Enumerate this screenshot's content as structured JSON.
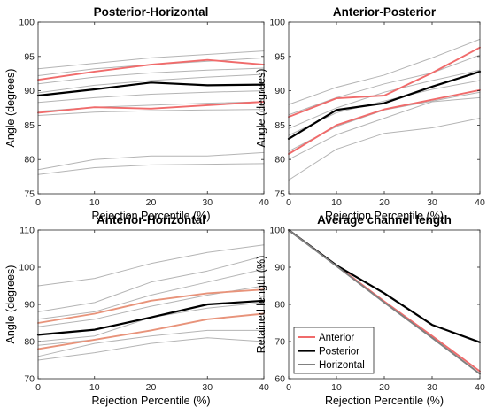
{
  "chart_data": [
    {
      "type": "line",
      "title": "Posterior-Horizontal",
      "xlabel": "Rejection Percentile (%)",
      "ylabel": "Angle (degrees)",
      "xlim": [
        0,
        40
      ],
      "ylim": [
        75,
        100
      ],
      "xticks": [
        0,
        10,
        20,
        30,
        40
      ],
      "yticks": [
        75,
        80,
        85,
        90,
        95,
        100
      ],
      "grid": false,
      "series": [
        {
          "role": "individual",
          "color": "#b4b4b4",
          "x": [
            0,
            10,
            20,
            30,
            40
          ],
          "y": [
            93.2,
            94.0,
            94.8,
            95.3,
            95.8
          ]
        },
        {
          "role": "individual",
          "color": "#b4b4b4",
          "x": [
            0,
            10,
            20,
            30,
            40
          ],
          "y": [
            92.2,
            93.2,
            93.8,
            94.3,
            94.8
          ]
        },
        {
          "role": "individual",
          "color": "#b4b4b4",
          "x": [
            0,
            10,
            20,
            30,
            40
          ],
          "y": [
            91.0,
            92.0,
            92.6,
            93.0,
            93.3
          ]
        },
        {
          "role": "individual",
          "color": "#b4b4b4",
          "x": [
            0,
            10,
            20,
            30,
            40
          ],
          "y": [
            89.7,
            90.8,
            91.5,
            92.0,
            92.4
          ]
        },
        {
          "role": "individual",
          "color": "#b4b4b4",
          "x": [
            0,
            10,
            20,
            30,
            40
          ],
          "y": [
            88.3,
            89.0,
            89.5,
            89.8,
            90.0
          ]
        },
        {
          "role": "individual",
          "color": "#b4b4b4",
          "x": [
            0,
            10,
            20,
            30,
            40
          ],
          "y": [
            87.0,
            87.6,
            87.9,
            88.2,
            88.4
          ]
        },
        {
          "role": "individual",
          "color": "#b4b4b4",
          "x": [
            0,
            10,
            20,
            30,
            40
          ],
          "y": [
            86.4,
            86.9,
            87.1,
            87.2,
            87.3
          ]
        },
        {
          "role": "individual",
          "color": "#b4b4b4",
          "x": [
            0,
            10,
            20,
            30,
            40
          ],
          "y": [
            78.5,
            80.0,
            80.5,
            80.5,
            81.0
          ]
        },
        {
          "role": "individual",
          "color": "#b4b4b4",
          "x": [
            0,
            10,
            20,
            30,
            40
          ],
          "y": [
            77.8,
            78.8,
            79.2,
            79.3,
            79.4
          ]
        },
        {
          "role": "anterior",
          "color": "#f06b6b",
          "x": [
            0,
            10,
            20,
            30,
            40
          ],
          "y": [
            91.6,
            92.8,
            93.8,
            94.5,
            93.8
          ]
        },
        {
          "role": "posterior",
          "color": "#000000",
          "x": [
            0,
            10,
            20,
            30,
            40
          ],
          "y": [
            89.3,
            90.2,
            91.2,
            90.8,
            90.9
          ]
        },
        {
          "role": "anterior",
          "color": "#f06b6b",
          "x": [
            0,
            10,
            20,
            30,
            40
          ],
          "y": [
            86.8,
            87.6,
            87.4,
            87.9,
            88.4
          ]
        }
      ]
    },
    {
      "type": "line",
      "title": "Anterior-Posterior",
      "xlabel": "Rejection Percentile (%)",
      "ylabel": "Angle (degrees)",
      "xlim": [
        0,
        40
      ],
      "ylim": [
        75,
        100
      ],
      "xticks": [
        0,
        10,
        20,
        30,
        40
      ],
      "yticks": [
        75,
        80,
        85,
        90,
        95,
        100
      ],
      "grid": false,
      "series": [
        {
          "role": "individual",
          "color": "#b4b4b4",
          "x": [
            0,
            10,
            20,
            30,
            40
          ],
          "y": [
            88.0,
            90.5,
            92.3,
            94.8,
            97.5
          ]
        },
        {
          "role": "individual",
          "color": "#b4b4b4",
          "x": [
            0,
            10,
            20,
            30,
            40
          ],
          "y": [
            86.5,
            89.0,
            91.0,
            92.6,
            95.2
          ]
        },
        {
          "role": "individual",
          "color": "#b4b4b4",
          "x": [
            0,
            10,
            20,
            30,
            40
          ],
          "y": [
            84.5,
            87.5,
            89.8,
            91.5,
            93.0
          ]
        },
        {
          "role": "individual",
          "color": "#b4b4b4",
          "x": [
            0,
            10,
            20,
            30,
            40
          ],
          "y": [
            83.5,
            86.8,
            88.5,
            90.2,
            91.5
          ]
        },
        {
          "role": "individual",
          "color": "#b4b4b4",
          "x": [
            0,
            10,
            20,
            30,
            40
          ],
          "y": [
            81.2,
            84.8,
            87.2,
            88.5,
            89.8
          ]
        },
        {
          "role": "individual",
          "color": "#b4b4b4",
          "x": [
            0,
            10,
            20,
            30,
            40
          ],
          "y": [
            80.0,
            83.6,
            86.0,
            88.4,
            89.0
          ]
        },
        {
          "role": "individual",
          "color": "#b4b4b4",
          "x": [
            0,
            10,
            20,
            30,
            40
          ],
          "y": [
            77.0,
            81.5,
            83.8,
            84.6,
            86.0
          ]
        },
        {
          "role": "anterior",
          "color": "#f06b6b",
          "x": [
            0,
            10,
            20,
            30,
            40
          ],
          "y": [
            86.2,
            88.9,
            89.3,
            92.6,
            96.3
          ]
        },
        {
          "role": "posterior",
          "color": "#000000",
          "x": [
            0,
            10,
            20,
            30,
            40
          ],
          "y": [
            83.0,
            87.2,
            88.2,
            90.6,
            92.8
          ]
        },
        {
          "role": "anterior",
          "color": "#f06b6b",
          "x": [
            0,
            10,
            20,
            30,
            40
          ],
          "y": [
            80.8,
            85.0,
            87.3,
            88.7,
            90.1
          ]
        }
      ]
    },
    {
      "type": "line",
      "title": "Anterior-Horizontal",
      "xlabel": "Rejection Percentile (%)",
      "ylabel": "Angle (degrees)",
      "xlim": [
        0,
        40
      ],
      "ylim": [
        70,
        110
      ],
      "xticks": [
        0,
        10,
        20,
        30,
        40
      ],
      "yticks": [
        70,
        80,
        90,
        100,
        110
      ],
      "grid": false,
      "series": [
        {
          "role": "individual",
          "color": "#b4b4b4",
          "x": [
            0,
            10,
            20,
            30,
            40
          ],
          "y": [
            95.0,
            97.0,
            101.0,
            104.0,
            106.0
          ]
        },
        {
          "role": "individual",
          "color": "#b4b4b4",
          "x": [
            0,
            10,
            20,
            30,
            40
          ],
          "y": [
            88.0,
            90.5,
            96.0,
            99.0,
            103.0
          ]
        },
        {
          "role": "individual",
          "color": "#b4b4b4",
          "x": [
            0,
            10,
            20,
            30,
            40
          ],
          "y": [
            86.0,
            88.0,
            92.5,
            96.0,
            99.5
          ]
        },
        {
          "role": "individual",
          "color": "#b4b4b4",
          "x": [
            0,
            10,
            20,
            30,
            40
          ],
          "y": [
            84.0,
            86.0,
            89.5,
            92.5,
            95.0
          ]
        },
        {
          "role": "individual",
          "color": "#b4b4b4",
          "x": [
            0,
            10,
            20,
            30,
            40
          ],
          "y": [
            80.0,
            81.5,
            86.5,
            89.0,
            90.5
          ]
        },
        {
          "role": "individual",
          "color": "#b4b4b4",
          "x": [
            0,
            10,
            20,
            30,
            40
          ],
          "y": [
            79.0,
            80.5,
            83.0,
            86.0,
            87.5
          ]
        },
        {
          "role": "individual",
          "color": "#b4b4b4",
          "x": [
            0,
            10,
            20,
            30,
            40
          ],
          "y": [
            76.0,
            79.5,
            81.5,
            83.0,
            83.0
          ]
        },
        {
          "role": "individual",
          "color": "#b4b4b4",
          "x": [
            0,
            10,
            20,
            30,
            40
          ],
          "y": [
            75.0,
            77.0,
            79.5,
            81.0,
            80.0
          ]
        },
        {
          "role": "anterior",
          "color": "#e8937a",
          "x": [
            0,
            10,
            20,
            30,
            40
          ],
          "y": [
            85.0,
            87.5,
            91.0,
            93.0,
            94.0
          ]
        },
        {
          "role": "posterior",
          "color": "#000000",
          "x": [
            0,
            10,
            20,
            30,
            40
          ],
          "y": [
            81.8,
            83.2,
            86.5,
            90.0,
            91.0
          ]
        },
        {
          "role": "anterior",
          "color": "#e8937a",
          "x": [
            0,
            10,
            20,
            30,
            40
          ],
          "y": [
            78.0,
            80.5,
            83.0,
            86.0,
            87.5
          ]
        }
      ]
    },
    {
      "type": "line",
      "title": "Average channel length",
      "xlabel": "Rejection Percentile (%)",
      "ylabel": "Retained length (%)",
      "xlim": [
        0,
        40
      ],
      "ylim": [
        60,
        100
      ],
      "xticks": [
        0,
        10,
        20,
        30,
        40
      ],
      "yticks": [
        60,
        70,
        80,
        90,
        100
      ],
      "grid": false,
      "legend": {
        "placement": "bottom-left",
        "entries": [
          "Anterior",
          "Posterior",
          "Horizontal"
        ]
      },
      "series": [
        {
          "name": "Anterior",
          "color": "#f06b6b",
          "x": [
            0,
            10,
            20,
            30,
            40
          ],
          "y": [
            100.0,
            90.5,
            80.8,
            71.5,
            62.0
          ]
        },
        {
          "name": "Posterior",
          "color": "#000000",
          "x": [
            0,
            10,
            20,
            30,
            40
          ],
          "y": [
            100.0,
            90.5,
            83.0,
            74.5,
            69.8
          ]
        },
        {
          "name": "Horizontal",
          "color": "#808080",
          "x": [
            0,
            10,
            20,
            30,
            40
          ],
          "y": [
            100.0,
            90.3,
            80.5,
            71.0,
            61.3
          ]
        }
      ]
    }
  ]
}
